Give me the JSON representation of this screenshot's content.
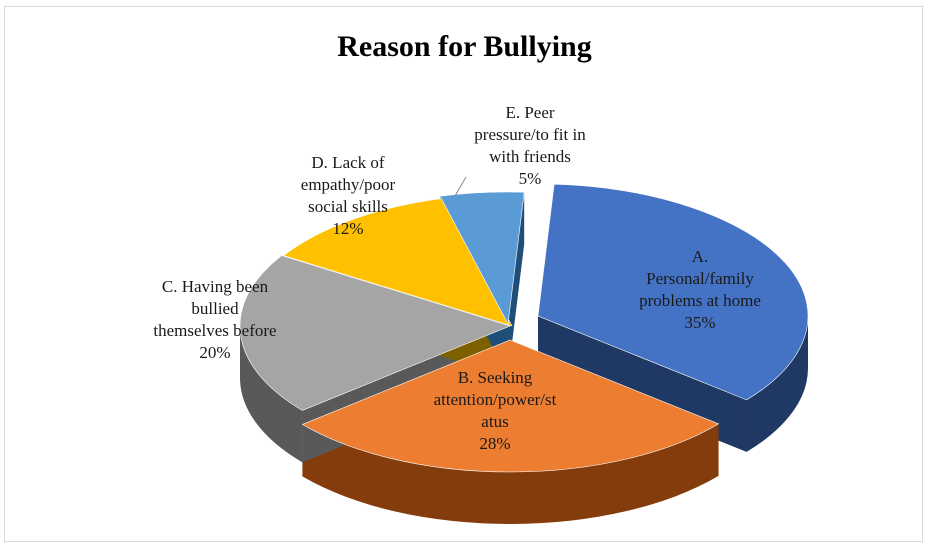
{
  "chart_data": {
    "type": "pie",
    "title": "Reason for Bullying",
    "legend": "none",
    "slices": [
      {
        "label": [
          "A.",
          "Personal/family",
          "problems at home"
        ],
        "value": 35,
        "display": "35%",
        "color": "#4472c4",
        "side": "#1f3864"
      },
      {
        "label": [
          "B. Seeking",
          "attention/power/st",
          "atus"
        ],
        "value": 28,
        "display": "28%",
        "color": "#ed7d31",
        "side": "#843c0c"
      },
      {
        "label": [
          "C. Having been",
          "bullied",
          "themselves before"
        ],
        "value": 20,
        "display": "20%",
        "color": "#a5a5a5",
        "side": "#595959"
      },
      {
        "label": [
          "D. Lack of",
          "empathy/poor",
          "social skills"
        ],
        "value": 12,
        "display": "12%",
        "color": "#ffc000",
        "side": "#7f6000"
      },
      {
        "label": [
          "E. Peer",
          "pressure/to fit in",
          "with friends"
        ],
        "value": 5,
        "display": "5%",
        "color": "#5b9bd5",
        "side": "#1f4e79"
      }
    ]
  }
}
